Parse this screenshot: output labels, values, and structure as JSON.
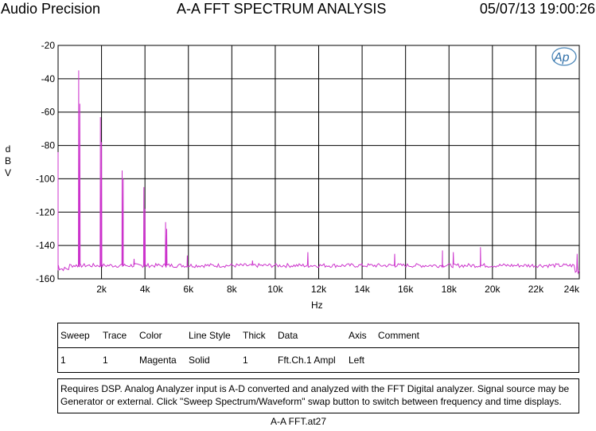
{
  "header": {
    "left": "Audio Precision",
    "center": "A-A FFT SPECTRUM ANALYSIS",
    "right": "05/07/13 19:00:26"
  },
  "logo_text": "Ap",
  "chart_data": {
    "type": "line",
    "xlabel": "Hz",
    "ylabel": "d\nB\nV",
    "xlim": [
      0,
      24000
    ],
    "ylim": [
      -160,
      -20
    ],
    "x_ticks": [
      2000,
      4000,
      6000,
      8000,
      10000,
      12000,
      14000,
      16000,
      18000,
      20000,
      22000,
      24000
    ],
    "x_tick_labels": [
      "2k",
      "4k",
      "6k",
      "8k",
      "10k",
      "12k",
      "14k",
      "16k",
      "18k",
      "20k",
      "22k",
      "24k"
    ],
    "y_ticks": [
      -20,
      -40,
      -60,
      -80,
      -100,
      -120,
      -140,
      -160
    ],
    "y_tick_labels": [
      "-20",
      "-40",
      "-60",
      "-80",
      "-100",
      "-120",
      "-140",
      "-160"
    ],
    "grid": true,
    "series": [
      {
        "color": "#cc33cc",
        "noise_floor": -152,
        "peaks": [
          {
            "x": 0,
            "y": -84
          },
          {
            "x": 950,
            "y": -35
          },
          {
            "x": 1000,
            "y": -55
          },
          {
            "x": 1950,
            "y": -63
          },
          {
            "x": 2000,
            "y": -78
          },
          {
            "x": 2950,
            "y": -95
          },
          {
            "x": 3000,
            "y": -100
          },
          {
            "x": 3500,
            "y": -148
          },
          {
            "x": 3950,
            "y": -105
          },
          {
            "x": 4000,
            "y": -118
          },
          {
            "x": 4950,
            "y": -126
          },
          {
            "x": 5000,
            "y": -130
          },
          {
            "x": 5950,
            "y": -146
          },
          {
            "x": 8950,
            "y": -149
          },
          {
            "x": 11500,
            "y": -144
          },
          {
            "x": 15500,
            "y": -145
          },
          {
            "x": 17700,
            "y": -143
          },
          {
            "x": 18200,
            "y": -144
          },
          {
            "x": 19450,
            "y": -141
          },
          {
            "x": 23900,
            "y": -145
          }
        ]
      }
    ]
  },
  "legend": {
    "headers": [
      "Sweep",
      "Trace",
      "Color",
      "Line Style",
      "Thick",
      "Data",
      "Axis",
      "Comment"
    ],
    "row": [
      "1",
      "1",
      "Magenta",
      "Solid",
      "1",
      "Fft.Ch.1 Ampl",
      "Left",
      ""
    ]
  },
  "note": {
    "line1": "Requires DSP.  Analog Analyzer input is A-D converted and analyzed with the FFT Digital analyzer.  Signal source may be",
    "line2": "Generator or external.  Click \"Sweep Spectrum/Waveform\" swap button to switch between frequency and time displays."
  },
  "footer": "A-A FFT.at27"
}
